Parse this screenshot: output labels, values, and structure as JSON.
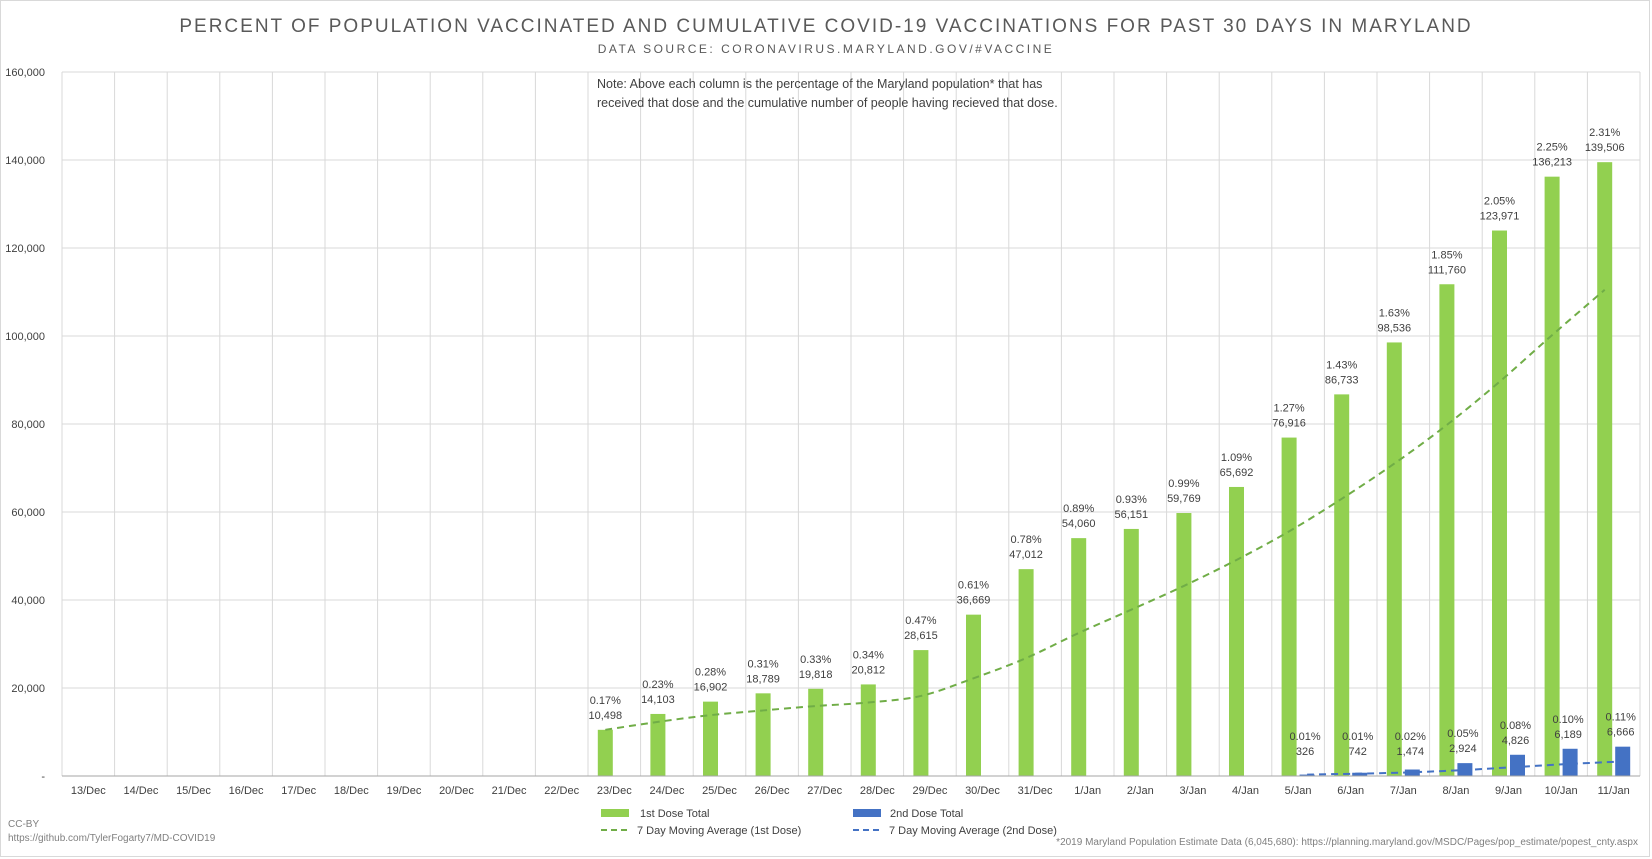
{
  "title": "PERCENT OF POPULATION VACCINATED AND CUMULATIVE COVID-19 VACCINATIONS FOR PAST 30 DAYS IN MARYLAND",
  "subtitle": "DATA SOURCE: CORONAVIRUS.MARYLAND.GOV/#VACCINE",
  "note": [
    "Note: Above each column is the percentage of the Maryland population* that has",
    "received that dose and the cumulative number of people having recieved that dose."
  ],
  "footer_left": [
    "CC-BY",
    "https://github.com/TylerFogarty7/MD-COVID19"
  ],
  "footer_right": "*2019 Maryland Population Estimate Data (6,045,680): https://planning.maryland.gov/MSDC/Pages/pop_estimate/popest_cnty.aspx",
  "colors": {
    "first_dose": "#92d050",
    "second_dose": "#4472c4",
    "first_dose_ma": "#70ad47",
    "second_dose_ma": "#4472c4",
    "grid": "#d9d9d9"
  },
  "chart_data": {
    "type": "bar",
    "categories": [
      "13/Dec",
      "14/Dec",
      "15/Dec",
      "16/Dec",
      "17/Dec",
      "18/Dec",
      "19/Dec",
      "20/Dec",
      "21/Dec",
      "22/Dec",
      "23/Dec",
      "24/Dec",
      "25/Dec",
      "26/Dec",
      "27/Dec",
      "28/Dec",
      "29/Dec",
      "30/Dec",
      "31/Dec",
      "1/Jan",
      "2/Jan",
      "3/Jan",
      "4/Jan",
      "5/Jan",
      "6/Jan",
      "7/Jan",
      "8/Jan",
      "9/Jan",
      "10/Jan",
      "11/Jan"
    ],
    "ylim": [
      0,
      160000
    ],
    "yticks": [
      0,
      20000,
      40000,
      60000,
      80000,
      100000,
      120000,
      140000,
      160000
    ],
    "ytick_labels": [
      "-",
      "20,000",
      "40,000",
      "60,000",
      "80,000",
      "100,000",
      "120,000",
      "140,000",
      "160,000"
    ],
    "grid": true,
    "legend_position": "bottom",
    "series": [
      {
        "name": "1st Dose Total",
        "kind": "bar",
        "values": [
          null,
          null,
          null,
          null,
          null,
          null,
          null,
          null,
          null,
          null,
          10498,
          14103,
          16902,
          18789,
          19818,
          20812,
          28615,
          36669,
          47012,
          54060,
          56151,
          59769,
          65692,
          76916,
          86733,
          98536,
          111760,
          123971,
          136213,
          139506
        ],
        "value_labels": [
          null,
          null,
          null,
          null,
          null,
          null,
          null,
          null,
          null,
          null,
          "10,498",
          "14,103",
          "16,902",
          "18,789",
          "19,818",
          "20,812",
          "28,615",
          "36,669",
          "47,012",
          "54,060",
          "56,151",
          "59,769",
          "65,692",
          "76,916",
          "86,733",
          "98,536",
          "111,760",
          "123,971",
          "136,213",
          "139,506"
        ],
        "pct_labels": [
          null,
          null,
          null,
          null,
          null,
          null,
          null,
          null,
          null,
          null,
          "0.17%",
          "0.23%",
          "0.28%",
          "0.31%",
          "0.33%",
          "0.34%",
          "0.47%",
          "0.61%",
          "0.78%",
          "0.89%",
          "0.93%",
          "0.99%",
          "1.09%",
          "1.27%",
          "1.43%",
          "1.63%",
          "1.85%",
          "2.05%",
          "2.25%",
          "2.31%"
        ]
      },
      {
        "name": "2nd Dose Total",
        "kind": "bar",
        "values": [
          null,
          null,
          null,
          null,
          null,
          null,
          null,
          null,
          null,
          null,
          null,
          null,
          null,
          null,
          null,
          null,
          null,
          null,
          null,
          null,
          null,
          null,
          null,
          326,
          742,
          1474,
          2924,
          4826,
          6189,
          6666
        ],
        "value_labels": [
          null,
          null,
          null,
          null,
          null,
          null,
          null,
          null,
          null,
          null,
          null,
          null,
          null,
          null,
          null,
          null,
          null,
          null,
          null,
          null,
          null,
          null,
          null,
          "326",
          "742",
          "1,474",
          "2,924",
          "4,826",
          "6,189",
          "6,666"
        ],
        "pct_labels": [
          null,
          null,
          null,
          null,
          null,
          null,
          null,
          null,
          null,
          null,
          null,
          null,
          null,
          null,
          null,
          null,
          null,
          null,
          null,
          null,
          null,
          null,
          null,
          "0.01%",
          "0.01%",
          "0.02%",
          "0.05%",
          "0.08%",
          "0.10%",
          "0.11%"
        ]
      },
      {
        "name": "7 Day Moving Average (1st Dose)",
        "kind": "line",
        "values": [
          null,
          null,
          null,
          null,
          null,
          null,
          null,
          null,
          null,
          null,
          10498,
          12300,
          13834,
          14900,
          15900,
          16700,
          18200,
          22200,
          26800,
          32500,
          37800,
          43200,
          49100,
          55600,
          63000,
          71000,
          79800,
          89600,
          100200,
          110500
        ]
      },
      {
        "name": "7 Day Moving Average (2nd Dose)",
        "kind": "line",
        "values": [
          null,
          null,
          null,
          null,
          null,
          null,
          null,
          null,
          null,
          null,
          null,
          null,
          null,
          null,
          null,
          null,
          null,
          null,
          null,
          null,
          null,
          null,
          null,
          326,
          534,
          847,
          1367,
          2058,
          2747,
          3307
        ]
      }
    ]
  }
}
